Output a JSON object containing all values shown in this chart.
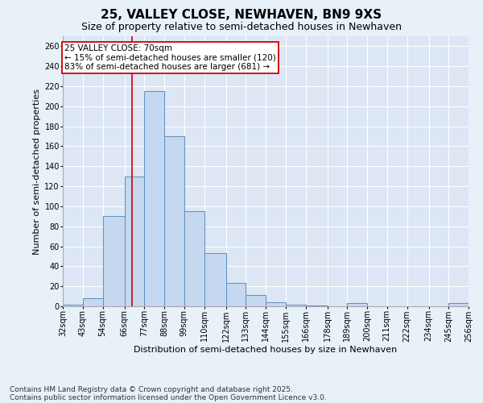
{
  "title": "25, VALLEY CLOSE, NEWHAVEN, BN9 9XS",
  "subtitle": "Size of property relative to semi-detached houses in Newhaven",
  "xlabel": "Distribution of semi-detached houses by size in Newhaven",
  "ylabel": "Number of semi-detached properties",
  "footer": "Contains HM Land Registry data © Crown copyright and database right 2025.\nContains public sector information licensed under the Open Government Licence v3.0.",
  "bins": [
    32,
    43,
    54,
    66,
    77,
    88,
    99,
    110,
    122,
    133,
    144,
    155,
    166,
    178,
    189,
    200,
    211,
    222,
    234,
    245,
    256
  ],
  "bar_heights": [
    2,
    8,
    90,
    130,
    215,
    170,
    95,
    53,
    23,
    11,
    4,
    2,
    1,
    0,
    3,
    0,
    0,
    0,
    0,
    3
  ],
  "bar_color": "#c5d8ef",
  "bar_edge_color": "#5b8ec4",
  "vline_x": 70,
  "vline_color": "#cc0000",
  "annotation_text": "25 VALLEY CLOSE: 70sqm\n← 15% of semi-detached houses are smaller (120)\n83% of semi-detached houses are larger (681) →",
  "annotation_box_edgecolor": "#cc0000",
  "ylim": [
    0,
    270
  ],
  "yticks": [
    0,
    20,
    40,
    60,
    80,
    100,
    120,
    140,
    160,
    180,
    200,
    220,
    240,
    260
  ],
  "plot_bg_color": "#dce6f5",
  "fig_bg_color": "#e8f0f8",
  "grid_color": "#ffffff",
  "title_fontsize": 11,
  "subtitle_fontsize": 9,
  "ylabel_fontsize": 8,
  "xlabel_fontsize": 8,
  "tick_label_fontsize": 7,
  "footer_fontsize": 6.5,
  "ann_fontsize": 7.5
}
